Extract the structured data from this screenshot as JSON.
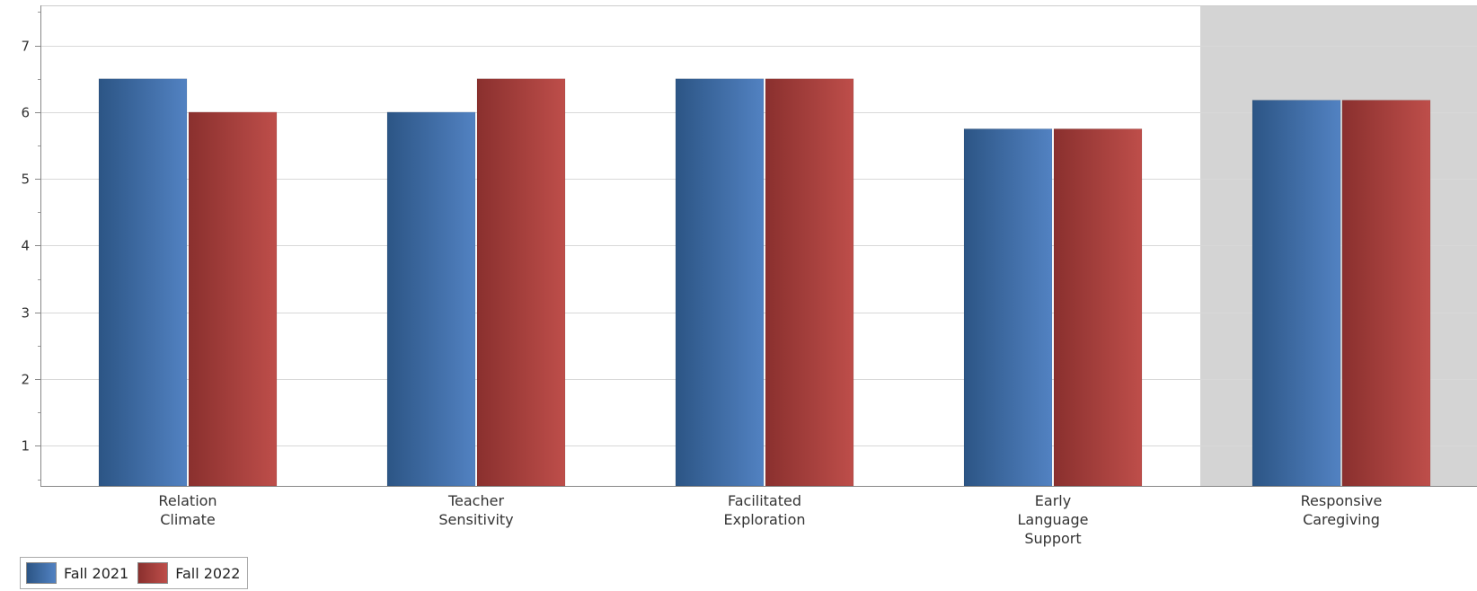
{
  "chart_data": {
    "type": "bar",
    "title": "",
    "xlabel": "",
    "ylabel": "",
    "categories": [
      [
        "Relation",
        "Climate"
      ],
      [
        "Teacher",
        "Sensitivity"
      ],
      [
        "Facilitated",
        "Exploration"
      ],
      [
        "Early",
        "Language",
        "Support"
      ],
      [
        "Responsive",
        "Caregiving"
      ]
    ],
    "series": [
      {
        "name": "Fall 2021",
        "color": "#3f6ea8",
        "values": [
          6.5,
          6.0,
          6.5,
          5.75,
          6.18
        ]
      },
      {
        "name": "Fall 2022",
        "color": "#a8413e",
        "values": [
          6.0,
          6.5,
          6.5,
          5.75,
          6.18
        ]
      }
    ],
    "ylim": [
      0.4,
      7.6
    ],
    "yticks": [
      1,
      2,
      3,
      4,
      5,
      6,
      7
    ],
    "grid": true,
    "highlighted_category": "Responsive Caregiving",
    "highlight_color": "#d4d4d4",
    "legend_position": "bottom-left"
  }
}
